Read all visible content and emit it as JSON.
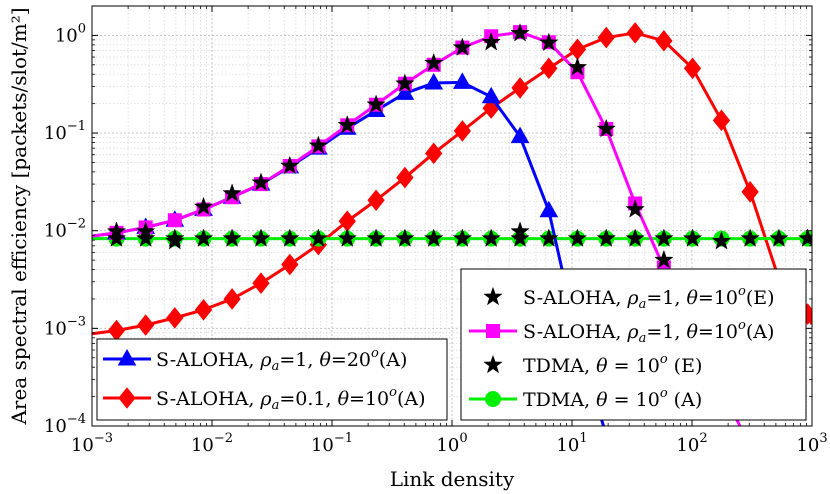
{
  "chart_data": {
    "type": "line",
    "title": "",
    "xlabel": "Link density",
    "ylabel": "Area spectral efficiency [packets/slot/m²]",
    "xscale": "log",
    "yscale": "log",
    "xlim": [
      0.001,
      1000
    ],
    "ylim": [
      0.0001,
      2
    ],
    "grid": true,
    "x_ticks": [
      {
        "value": 0.001,
        "base": "10",
        "exp": "−3"
      },
      {
        "value": 0.01,
        "base": "10",
        "exp": "−2"
      },
      {
        "value": 0.1,
        "base": "10",
        "exp": "−1"
      },
      {
        "value": 1,
        "base": "10",
        "exp": "0"
      },
      {
        "value": 10,
        "base": "10",
        "exp": "1"
      },
      {
        "value": 100,
        "base": "10",
        "exp": "2"
      },
      {
        "value": 1000,
        "base": "10",
        "exp": "3"
      }
    ],
    "y_ticks": [
      {
        "value": 0.0001,
        "base": "10",
        "exp": "−4"
      },
      {
        "value": 0.001,
        "base": "10",
        "exp": "−3"
      },
      {
        "value": 0.01,
        "base": "10",
        "exp": "−2"
      },
      {
        "value": 0.1,
        "base": "10",
        "exp": "−1"
      },
      {
        "value": 1,
        "base": "10",
        "exp": "0"
      }
    ],
    "series": [
      {
        "name": "S-ALOHA, ρa=1, θ=20ᵒ (A)",
        "color": "#0000ff",
        "marker": "triangle",
        "x": [
          0.001,
          0.0016,
          0.0028,
          0.0049,
          0.0085,
          0.0147,
          0.0256,
          0.0445,
          0.077,
          0.134,
          0.233,
          0.405,
          0.704,
          1.22,
          2.12,
          3.69,
          6.41,
          11.1,
          19.3
        ],
        "y": [
          0.0088,
          0.0095,
          0.0108,
          0.0128,
          0.0165,
          0.022,
          0.03,
          0.045,
          0.07,
          0.112,
          0.17,
          0.255,
          0.325,
          0.33,
          0.235,
          0.092,
          0.016,
          0.0008,
          8e-05
        ],
        "marked_x": [
          0.0016,
          0.0028,
          0.0049,
          0.0085,
          0.0147,
          0.0256,
          0.0445,
          0.077,
          0.134,
          0.233,
          0.405,
          0.704,
          1.22,
          2.12,
          3.69,
          6.41
        ]
      },
      {
        "name": "S-ALOHA, ρa=1, θ=10ᵒ (A)",
        "color": "#ff00ff",
        "marker": "square",
        "x": [
          0.001,
          0.0016,
          0.0028,
          0.0049,
          0.0085,
          0.0147,
          0.0256,
          0.0445,
          0.077,
          0.134,
          0.233,
          0.405,
          0.704,
          1.22,
          2.12,
          3.69,
          6.41,
          11.1,
          19.3,
          33.6,
          58.3,
          101,
          176,
          305
        ],
        "y": [
          0.0088,
          0.0095,
          0.0108,
          0.0128,
          0.0165,
          0.022,
          0.03,
          0.046,
          0.073,
          0.12,
          0.195,
          0.32,
          0.5,
          0.75,
          0.98,
          1.08,
          0.85,
          0.42,
          0.11,
          0.019,
          0.0042,
          0.0011,
          0.00025,
          6e-05
        ],
        "marked_x": [
          0.0016,
          0.0028,
          0.0049,
          0.0085,
          0.0147,
          0.0256,
          0.0445,
          0.077,
          0.134,
          0.233,
          0.405,
          0.704,
          1.22,
          2.12,
          3.69,
          6.41,
          11.1,
          19.3,
          33.6,
          58.3
        ]
      },
      {
        "name": "S-ALOHA, ρa=0.1, θ=10ᵒ (A)",
        "color": "#ff0000",
        "marker": "diamond",
        "x": [
          0.001,
          0.0016,
          0.0028,
          0.0049,
          0.0085,
          0.0147,
          0.0256,
          0.0445,
          0.077,
          0.134,
          0.233,
          0.405,
          0.704,
          1.22,
          2.12,
          3.69,
          6.41,
          11.1,
          19.3,
          33.6,
          58.3,
          101,
          176,
          305,
          530,
          920,
          1000
        ],
        "y": [
          0.00088,
          0.00095,
          0.00108,
          0.00128,
          0.00155,
          0.002,
          0.0029,
          0.0045,
          0.0072,
          0.0125,
          0.0205,
          0.035,
          0.062,
          0.105,
          0.18,
          0.29,
          0.46,
          0.72,
          0.95,
          1.06,
          0.88,
          0.46,
          0.135,
          0.025,
          0.0032,
          0.0014,
          0.0011
        ],
        "marked_x": [
          0.0016,
          0.0028,
          0.0049,
          0.0085,
          0.0147,
          0.0256,
          0.0445,
          0.077,
          0.134,
          0.233,
          0.405,
          0.704,
          1.22,
          2.12,
          3.69,
          6.41,
          11.1,
          19.3,
          33.6,
          58.3,
          101,
          176,
          305,
          530,
          920
        ]
      },
      {
        "name": "TDMA, θ = 10ᵒ (A)",
        "color": "#00ee00",
        "marker": "circle",
        "x": [
          0.001,
          1000
        ],
        "y": [
          0.0083,
          0.0083
        ],
        "marked_x": [
          0.0016,
          0.0028,
          0.0049,
          0.0085,
          0.0147,
          0.0256,
          0.0445,
          0.077,
          0.134,
          0.233,
          0.405,
          0.704,
          1.22,
          2.12,
          3.69,
          6.41,
          11.1,
          19.3,
          33.6,
          58.3,
          101,
          176,
          305,
          530,
          920
        ]
      },
      {
        "name": "TDMA, θ = 10ᵒ (E)",
        "color": "#000000",
        "marker": "star",
        "points": [
          [
            0.0016,
            0.0083
          ],
          [
            0.0028,
            0.0083
          ],
          [
            0.0049,
            0.0083
          ],
          [
            0.0085,
            0.0083
          ],
          [
            0.0147,
            0.0083
          ],
          [
            0.0256,
            0.0083
          ],
          [
            0.0445,
            0.0083
          ],
          [
            0.077,
            0.0083
          ],
          [
            0.134,
            0.0083
          ],
          [
            0.233,
            0.0083
          ],
          [
            0.405,
            0.0083
          ],
          [
            0.704,
            0.0083
          ],
          [
            1.22,
            0.0083
          ],
          [
            2.12,
            0.0083
          ],
          [
            3.69,
            0.0083
          ],
          [
            6.41,
            0.0083
          ],
          [
            11.1,
            0.0083
          ],
          [
            19.3,
            0.0083
          ],
          [
            33.6,
            0.0083
          ],
          [
            58.3,
            0.0083
          ],
          [
            101,
            0.0083
          ],
          [
            176,
            0.0078
          ],
          [
            305,
            0.0083
          ],
          [
            530,
            0.0083
          ],
          [
            920,
            0.0083
          ]
        ]
      },
      {
        "name": "S-ALOHA, ρa=1, θ=10ᵒ (E)",
        "color": "#000000",
        "marker": "star",
        "points": [
          [
            0.0016,
            0.0098
          ],
          [
            0.0028,
            0.0098
          ],
          [
            0.0049,
            0.0078
          ],
          [
            0.0085,
            0.0175
          ],
          [
            0.0147,
            0.024
          ],
          [
            0.0256,
            0.031
          ],
          [
            0.0445,
            0.046
          ],
          [
            0.077,
            0.074
          ],
          [
            0.134,
            0.12
          ],
          [
            0.233,
            0.195
          ],
          [
            0.405,
            0.32
          ],
          [
            0.704,
            0.52
          ],
          [
            1.22,
            0.75
          ],
          [
            2.12,
            0.85
          ],
          [
            3.69,
            1.05
          ],
          [
            3.69,
            0.0098
          ],
          [
            6.41,
            0.84
          ],
          [
            11.1,
            0.47
          ],
          [
            19.3,
            0.11
          ],
          [
            33.6,
            0.0165
          ],
          [
            58.3,
            0.005
          ]
        ]
      }
    ],
    "legend": {
      "placement": "two boxes inside plot: bottom-left and bottom-right",
      "left_box": [
        {
          "series": 0,
          "label_pre": "S-ALOHA, ",
          "rho": "ρ",
          "rho_sub": "a",
          "rho_val": "=1, ",
          "theta": "θ",
          "theta_val": "=20",
          "theta_sup": "o",
          "suffix": "(A)"
        },
        {
          "series": 2,
          "label_pre": "S-ALOHA, ",
          "rho": "ρ",
          "rho_sub": "a",
          "rho_val": "=0.1, ",
          "theta": "θ",
          "theta_val": "=10",
          "theta_sup": "o",
          "suffix": "(A)"
        }
      ],
      "right_box": [
        {
          "series": 5,
          "label_pre": "S-ALOHA, ",
          "rho": "ρ",
          "rho_sub": "a",
          "rho_val": "=1, ",
          "theta": "θ",
          "theta_val": "=10",
          "theta_sup": "o",
          "suffix": "(E)"
        },
        {
          "series": 1,
          "label_pre": "S-ALOHA, ",
          "rho": "ρ",
          "rho_sub": "a",
          "rho_val": "=1, ",
          "theta": "θ",
          "theta_val": "=10",
          "theta_sup": "o",
          "suffix": "(A)"
        },
        {
          "series": 4,
          "label_pre": "TDMA, ",
          "rho": "",
          "rho_sub": "",
          "rho_val": "",
          "theta": "θ",
          "theta_val": " = 10",
          "theta_sup": "o",
          "suffix": " (E)"
        },
        {
          "series": 3,
          "label_pre": "TDMA, ",
          "rho": "",
          "rho_sub": "",
          "rho_val": "",
          "theta": "θ",
          "theta_val": " = 10",
          "theta_sup": "o",
          "suffix": " (A)"
        }
      ]
    }
  }
}
